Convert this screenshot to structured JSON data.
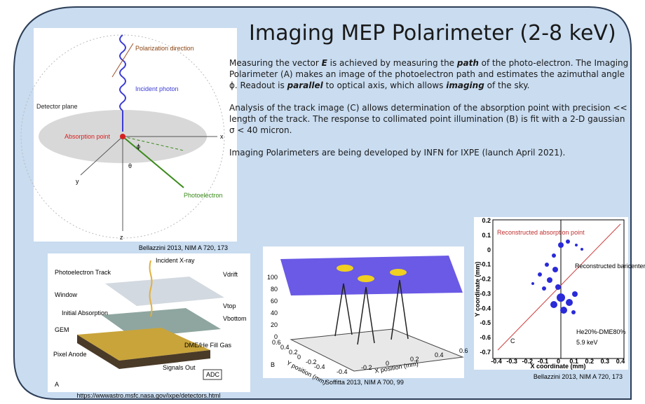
{
  "title": "Imaging MEP Polarimeter (2-8 keV)",
  "paragraphs": [
    [
      {
        "text": "Measuring the vector ",
        "em": false
      },
      {
        "text": "E",
        "em": true
      },
      {
        "text": " is achieved by measuring the ",
        "em": false
      },
      {
        "text": "path",
        "em": true
      },
      {
        "text": " of the photo-electron. The Imaging Polarimeter (A) makes an image of the photoelectron path and estimates the azimuthal angle ϕ.    Readout is ",
        "em": false
      },
      {
        "text": "parallel",
        "em": true
      },
      {
        "text": " to optical axis, which allows ",
        "em": false
      },
      {
        "text": "imaging",
        "em": true
      },
      {
        "text": " of the sky.",
        "em": false
      }
    ],
    [
      {
        "text": "Analysis of the track image (C) allows determination of the absorption point with precision << length of the track.    The response to collimated point illumination (B) is fit with a 2-D gaussian σ < 40 micron.",
        "em": false
      }
    ],
    [
      {
        "text": "Imaging Polarimeters are being developed by INFN for IXPE (launch April 2021).",
        "em": false
      }
    ]
  ],
  "figure_geometry": {
    "labels": {
      "polarization": "Polarization direction",
      "photon": "Incident photon",
      "plane": "Detector plane",
      "absorption": "Absorption point",
      "phi": "ϕ",
      "theta": "θ",
      "x": "x",
      "y": "y",
      "z": "z",
      "photoelectron": "Photoelectron"
    },
    "caption": "Bellazzini 2013, NIM A 720, 173"
  },
  "figure_a": {
    "labels": {
      "track": "Photoelectron Track",
      "xray": "Incident X-ray",
      "window": "Window",
      "initial": "Initial Absorption",
      "gem": "GEM",
      "gas": "DME/He Fill Gas",
      "anode": "Pixel Anode",
      "signals": "Signals Out",
      "adc": "ADC",
      "vdrift": "Vdrift",
      "vtop": "Vtop",
      "vbottom": "Vbottom",
      "panel": "A"
    },
    "caption": "https://wwwastro.msfc.nasa.gov/ixpe/detectors.html"
  },
  "figure_b": {
    "zticks": [
      0,
      20,
      40,
      60,
      80,
      100
    ],
    "yticks": [
      0.6,
      0.4,
      0.2,
      0,
      -0.2,
      -0.4
    ],
    "xticks": [
      -0.4,
      -0.2,
      0,
      0.2,
      0.4,
      0.6
    ],
    "ylabel": "Y position (mm)",
    "xlabel": "X position (mm)",
    "panel": "B",
    "caption": "Soffitta 2013, NIM A 700, 99"
  },
  "figure_c": {
    "yticks": [
      0.2,
      0.1,
      0,
      -0.1,
      -0.2,
      -0.3,
      -0.4,
      -0.5,
      -0.6,
      -0.7
    ],
    "xticks": [
      -0.4,
      -0.3,
      -0.2,
      -0.1,
      0,
      0.1,
      0.2,
      0.3,
      0.4
    ],
    "ylabel": "Y coordinate (mm)",
    "xlabel": "X coordinate (mm)",
    "absorption": "Reconstructed absorption point",
    "baricenter": "Reconstructed baricenter",
    "gas": "He20%-DME80%",
    "energy": "5.9 keV",
    "panel": "C",
    "caption": "Bellazzini 2013, NIM A 720, 173"
  }
}
